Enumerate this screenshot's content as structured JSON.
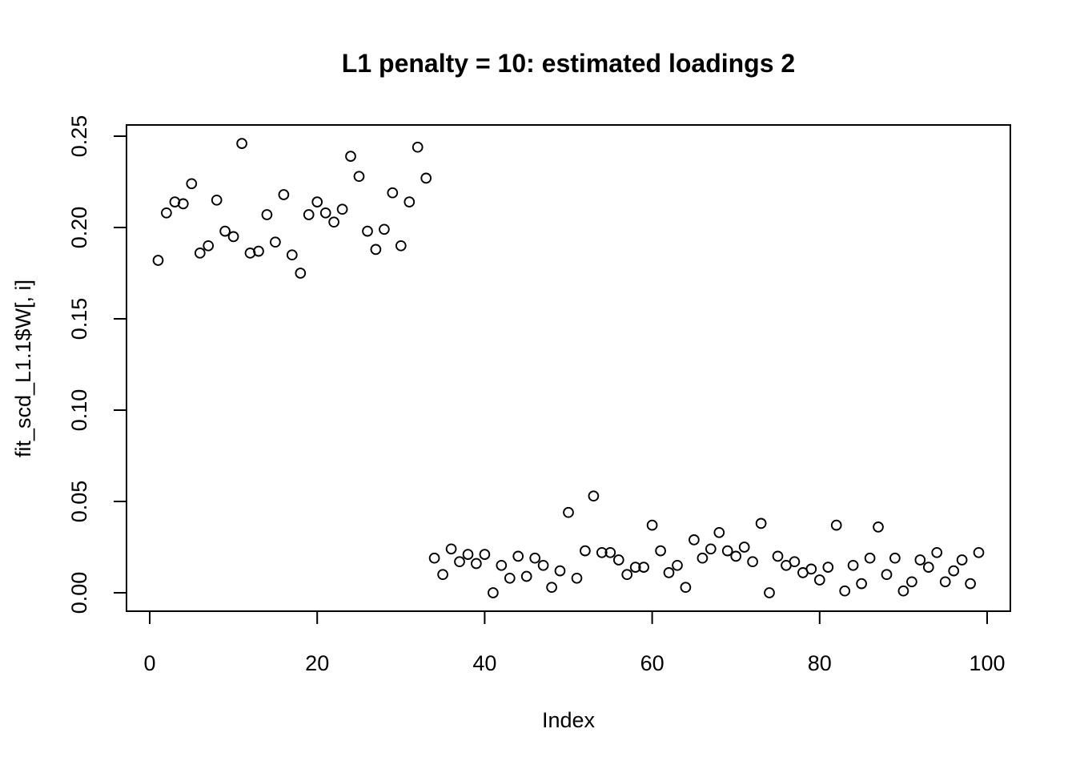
{
  "chart_data": {
    "type": "scatter",
    "title": "L1 penalty = 10: estimated loadings 2",
    "xlabel": "Index",
    "ylabel": "fit_scd_L1.1$W[, i]",
    "xlim": [
      0,
      100
    ],
    "ylim": [
      0.0,
      0.25
    ],
    "x_ticks": [
      "0",
      "20",
      "40",
      "60",
      "80",
      "100"
    ],
    "y_ticks": [
      "0.00",
      "0.05",
      "0.10",
      "0.15",
      "0.20",
      "0.25"
    ],
    "grid": false,
    "legend": null,
    "marker": "open-circle",
    "marker_color": "#000000",
    "background_color": "#ffffff",
    "points": [
      [
        1,
        0.182
      ],
      [
        2,
        0.208
      ],
      [
        3,
        0.214
      ],
      [
        4,
        0.213
      ],
      [
        5,
        0.224
      ],
      [
        6,
        0.186
      ],
      [
        7,
        0.19
      ],
      [
        8,
        0.215
      ],
      [
        9,
        0.198
      ],
      [
        10,
        0.195
      ],
      [
        11,
        0.246
      ],
      [
        12,
        0.186
      ],
      [
        13,
        0.187
      ],
      [
        14,
        0.207
      ],
      [
        15,
        0.192
      ],
      [
        16,
        0.218
      ],
      [
        17,
        0.185
      ],
      [
        18,
        0.175
      ],
      [
        19,
        0.207
      ],
      [
        20,
        0.214
      ],
      [
        21,
        0.208
      ],
      [
        22,
        0.203
      ],
      [
        23,
        0.21
      ],
      [
        24,
        0.239
      ],
      [
        25,
        0.228
      ],
      [
        26,
        0.198
      ],
      [
        27,
        0.188
      ],
      [
        28,
        0.199
      ],
      [
        29,
        0.219
      ],
      [
        30,
        0.19
      ],
      [
        31,
        0.214
      ],
      [
        32,
        0.244
      ],
      [
        33,
        0.227
      ],
      [
        34,
        0.019
      ],
      [
        35,
        0.01
      ],
      [
        36,
        0.024
      ],
      [
        37,
        0.017
      ],
      [
        38,
        0.021
      ],
      [
        39,
        0.016
      ],
      [
        40,
        0.021
      ],
      [
        41,
        0.0
      ],
      [
        42,
        0.015
      ],
      [
        43,
        0.008
      ],
      [
        44,
        0.02
      ],
      [
        45,
        0.009
      ],
      [
        46,
        0.019
      ],
      [
        47,
        0.015
      ],
      [
        48,
        0.003
      ],
      [
        49,
        0.012
      ],
      [
        50,
        0.044
      ],
      [
        51,
        0.008
      ],
      [
        52,
        0.023
      ],
      [
        53,
        0.053
      ],
      [
        54,
        0.022
      ],
      [
        55,
        0.022
      ],
      [
        56,
        0.018
      ],
      [
        57,
        0.01
      ],
      [
        58,
        0.014
      ],
      [
        59,
        0.014
      ],
      [
        60,
        0.037
      ],
      [
        61,
        0.023
      ],
      [
        62,
        0.011
      ],
      [
        63,
        0.015
      ],
      [
        64,
        0.003
      ],
      [
        65,
        0.029
      ],
      [
        66,
        0.019
      ],
      [
        67,
        0.024
      ],
      [
        68,
        0.033
      ],
      [
        69,
        0.023
      ],
      [
        70,
        0.02
      ],
      [
        71,
        0.025
      ],
      [
        72,
        0.017
      ],
      [
        73,
        0.038
      ],
      [
        74,
        0.0
      ],
      [
        75,
        0.02
      ],
      [
        76,
        0.015
      ],
      [
        77,
        0.017
      ],
      [
        78,
        0.011
      ],
      [
        79,
        0.013
      ],
      [
        80,
        0.007
      ],
      [
        81,
        0.014
      ],
      [
        82,
        0.037
      ],
      [
        83,
        0.001
      ],
      [
        84,
        0.015
      ],
      [
        85,
        0.005
      ],
      [
        86,
        0.019
      ],
      [
        87,
        0.036
      ],
      [
        88,
        0.01
      ],
      [
        89,
        0.019
      ],
      [
        90,
        0.001
      ],
      [
        91,
        0.006
      ],
      [
        92,
        0.018
      ],
      [
        93,
        0.014
      ],
      [
        94,
        0.022
      ],
      [
        95,
        0.006
      ],
      [
        96,
        0.012
      ],
      [
        97,
        0.018
      ],
      [
        98,
        0.005
      ],
      [
        99,
        0.022
      ]
    ]
  }
}
